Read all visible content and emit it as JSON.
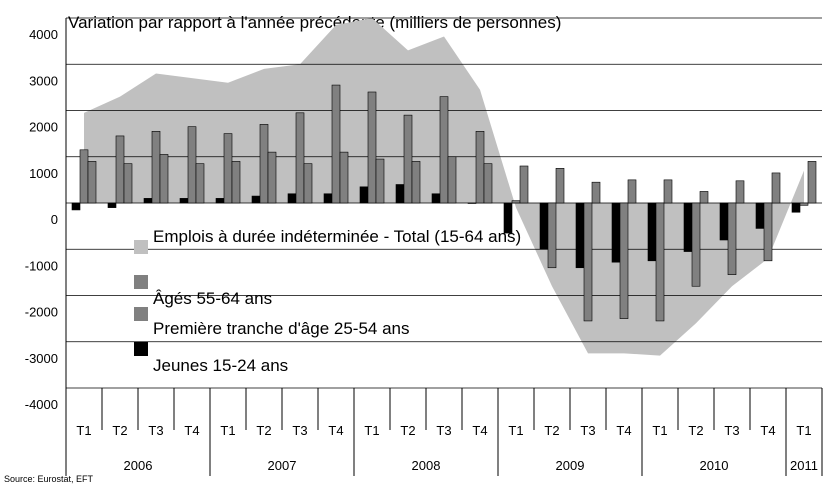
{
  "chart_data": {
    "type": "bar",
    "title": "Variation par rapport à l'année précédente (milliers de personnes)",
    "source": "Source: Eurostat, EFT",
    "categories": [
      "T1",
      "T2",
      "T3",
      "T4",
      "T1",
      "T2",
      "T3",
      "T4",
      "T1",
      "T2",
      "T3",
      "T4",
      "T1",
      "T2",
      "T3",
      "T4",
      "T1",
      "T2",
      "T3",
      "T4",
      "T1"
    ],
    "category_groups": [
      "2006",
      null,
      null,
      null,
      "2007",
      null,
      null,
      null,
      "2008",
      null,
      null,
      null,
      "2009",
      null,
      null,
      null,
      "2010",
      null,
      null,
      null,
      "2011"
    ],
    "series": [
      {
        "name": "Emplois à durée indéterminée - Total (15-64 ans)",
        "kind": "area",
        "color": "#c0c0c0",
        "values": [
          1950,
          2300,
          2800,
          2700,
          2600,
          2900,
          3000,
          3850,
          4000,
          3300,
          3600,
          2450,
          -100,
          -1800,
          -3250,
          -3250,
          -3300,
          -2600,
          -1800,
          -1200,
          700
        ]
      },
      {
        "name": "Âgés 55-64 ans",
        "kind": "bar",
        "color": "#808080",
        "values": [
          900,
          850,
          1050,
          850,
          900,
          1100,
          850,
          1100,
          950,
          900,
          1000,
          850,
          800,
          750,
          450,
          500,
          500,
          250,
          480,
          650,
          900
        ]
      },
      {
        "name": "Première tranche d'âge 25-54 ans",
        "kind": "bar",
        "color": "#808080",
        "values": [
          1150,
          1450,
          1550,
          1650,
          1500,
          1700,
          1950,
          2550,
          2400,
          1900,
          2300,
          1550,
          50,
          -1400,
          -2550,
          -2500,
          -2550,
          -1800,
          -1550,
          -1250,
          -50
        ]
      },
      {
        "name": "Jeunes 15-24 ans",
        "kind": "bar",
        "color": "#000000",
        "values": [
          -150,
          -100,
          100,
          100,
          100,
          150,
          200,
          200,
          350,
          400,
          200,
          0,
          -650,
          -1000,
          -1400,
          -1280,
          -1250,
          -1050,
          -800,
          -550,
          -200
        ]
      }
    ],
    "ylim": [
      -4000,
      4000
    ],
    "yticks": [
      -4000,
      -3000,
      -2000,
      -1000,
      0,
      1000,
      2000,
      3000,
      4000
    ],
    "grid": true
  }
}
